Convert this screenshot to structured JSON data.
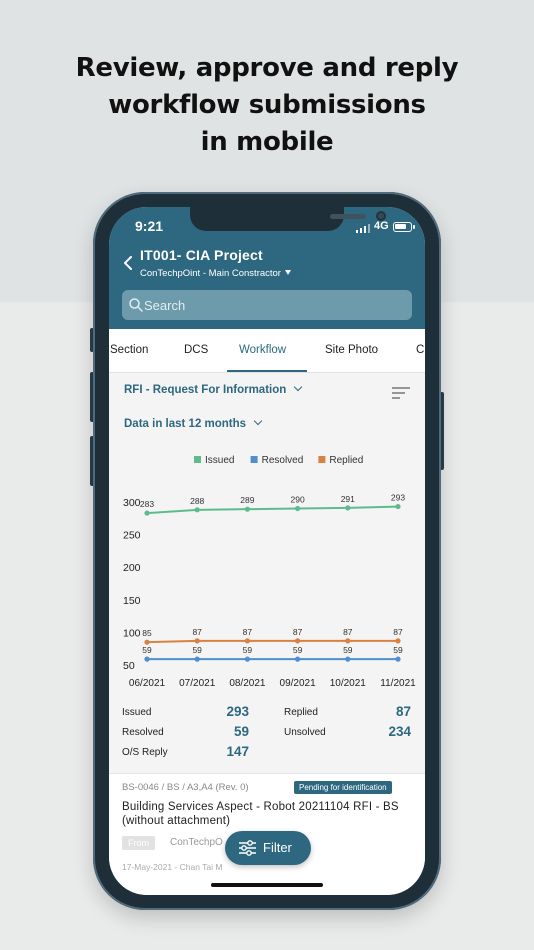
{
  "headline": {
    "line1": "Review, approve and reply",
    "line2": "workflow submissions",
    "line3": "in mobile"
  },
  "status_bar": {
    "time": "9:21",
    "network": "4G"
  },
  "header": {
    "title": "IT001- CIA Project",
    "subtitle": "ConTechpOint - Main Constractor"
  },
  "search": {
    "placeholder": "Search"
  },
  "tabs": [
    {
      "label": "Section"
    },
    {
      "label": "DCS"
    },
    {
      "label": "Workflow",
      "active": true
    },
    {
      "label": "Site Photo"
    },
    {
      "label": "C"
    }
  ],
  "filters": {
    "type_label": "RFI - Request For Information",
    "period_label": "Data in last 12 months"
  },
  "chart_data": {
    "type": "line",
    "x": [
      "06/2021",
      "07/2021",
      "08/2021",
      "09/2021",
      "10/2021",
      "11/2021"
    ],
    "yticks": [
      300,
      250,
      200,
      150,
      100,
      50
    ],
    "ylim": [
      50,
      300
    ],
    "series": [
      {
        "name": "Issued",
        "color": "#5dbb8e",
        "values": [
          283,
          288,
          289,
          290,
          291,
          293
        ]
      },
      {
        "name": "Resolved",
        "color": "#4d8fd1",
        "values": [
          59,
          59,
          59,
          59,
          59,
          59
        ]
      },
      {
        "name": "Replied",
        "color": "#d9813f",
        "values": [
          85,
          87,
          87,
          87,
          87,
          87
        ]
      }
    ]
  },
  "stats": {
    "issued_label": "Issued",
    "issued_value": "293",
    "replied_label": "Replied",
    "replied_value": "87",
    "resolved_label": "Resolved",
    "resolved_value": "59",
    "unsolved_label": "Unsolved",
    "unsolved_value": "234",
    "os_reply_label": "O/S Reply",
    "os_reply_value": "147"
  },
  "card": {
    "reference": "BS-0046 / BS / A3,A4 (Rev. 0)",
    "badge": "Pending for identification",
    "title": "Building Services Aspect - Robot 20211104 RFI - BS (without attachment)",
    "from_label": "From",
    "from_name": "ConTechpO",
    "date_meta": "17-May-2021 - Chan Tai M"
  },
  "fab": {
    "label": "Filter"
  },
  "colors": {
    "primary": "#2e6880",
    "search_bg": "#6d9bac"
  }
}
